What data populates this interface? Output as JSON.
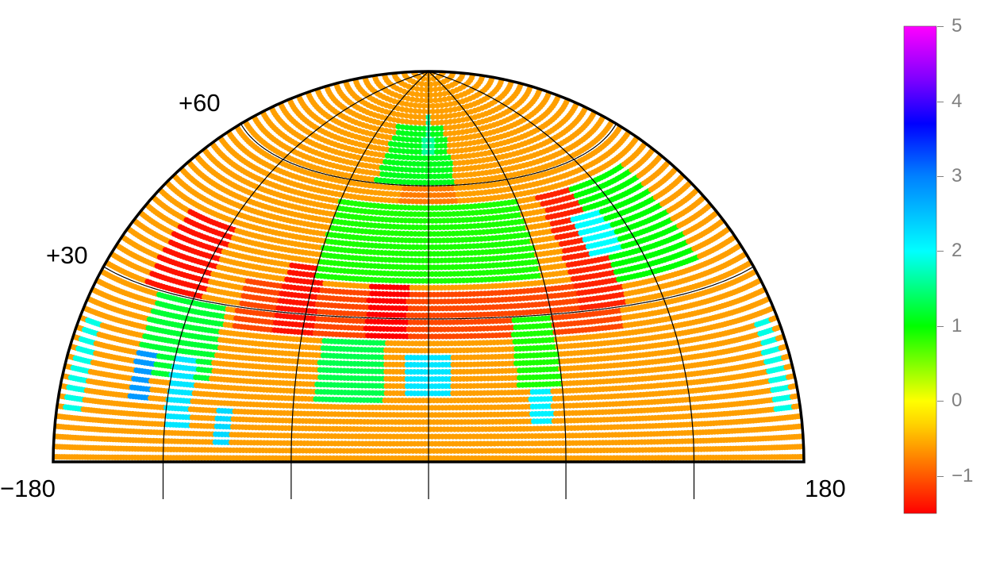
{
  "map": {
    "projection": "Hammer-Aitoff (northern hemisphere)",
    "latitude_labels": [
      "+60",
      "+30"
    ],
    "longitude_labels": [
      "−180",
      "180"
    ],
    "background_value": -0.6,
    "regions": [
      {
        "lon_range": [
          -95,
          95
        ],
        "lat_range": [
          25,
          36
        ],
        "value": -1.1
      },
      {
        "lon_range": [
          -20,
          20
        ],
        "lat_range": [
          55,
          75
        ],
        "value": -0.8
      },
      {
        "lon_range": [
          -75,
          -55
        ],
        "lat_range": [
          25,
          40
        ],
        "value": -1.4
      },
      {
        "lon_range": [
          75,
          100
        ],
        "lat_range": [
          30,
          55
        ],
        "value": -1.3
      },
      {
        "lon_range": [
          -150,
          -115
        ],
        "lat_range": [
          30,
          45
        ],
        "value": -1.4
      },
      {
        "lon_range": [
          -30,
          -10
        ],
        "lat_range": [
          25,
          38
        ],
        "value": -1.5
      },
      {
        "lon_range": [
          -60,
          60
        ],
        "lat_range": [
          38,
          55
        ],
        "value": 0.9
      },
      {
        "lon_range": [
          -40,
          20
        ],
        "lat_range": [
          60,
          75
        ],
        "value": 1.1
      },
      {
        "lon_range": [
          -140,
          -100
        ],
        "lat_range": [
          15,
          30
        ],
        "value": 1.2
      },
      {
        "lon_range": [
          100,
          150
        ],
        "lat_range": [
          35,
          55
        ],
        "value": 1.0
      },
      {
        "lon_range": [
          -120,
          -108
        ],
        "lat_range": [
          6,
          20
        ],
        "value": 2.2
      },
      {
        "lon_range": [
          -175,
          -165
        ],
        "lat_range": [
          8,
          22
        ],
        "value": 1.9
      },
      {
        "lon_range": [
          165,
          175
        ],
        "lat_range": [
          8,
          22
        ],
        "value": 1.9
      },
      {
        "lon_range": [
          -95,
          -88
        ],
        "lat_range": [
          3,
          10
        ],
        "value": 2.3
      },
      {
        "lon_range": [
          45,
          55
        ],
        "lat_range": [
          8,
          18
        ],
        "value": 2.1
      },
      {
        "lon_range": [
          -140,
          -130
        ],
        "lat_range": [
          10,
          20
        ],
        "value": 2.8
      },
      {
        "lon_range": [
          -5,
          5
        ],
        "lat_range": [
          68,
          78
        ],
        "value": 1.6
      },
      {
        "lon_range": [
          90,
          110
        ],
        "lat_range": [
          40,
          50
        ],
        "value": 2.0
      },
      {
        "lon_range": [
          40,
          60
        ],
        "lat_range": [
          15,
          30
        ],
        "value": 0.9
      },
      {
        "lon_range": [
          -50,
          -20
        ],
        "lat_range": [
          12,
          25
        ],
        "value": 1.3
      },
      {
        "lon_range": [
          -10,
          10
        ],
        "lat_range": [
          14,
          22
        ],
        "value": 2.2
      }
    ]
  },
  "colorbar": {
    "ticks": [
      "5",
      "4",
      "3",
      "2",
      "1",
      "0",
      "−1"
    ],
    "tick_values": [
      5,
      4,
      3,
      2,
      1,
      0,
      -1
    ],
    "min": -1.5,
    "max": 5,
    "stops": [
      {
        "value": -1.5,
        "color": "#ff0000"
      },
      {
        "value": -0.9,
        "color": "#ff6a00"
      },
      {
        "value": -0.3,
        "color": "#ffd400"
      },
      {
        "value": 0.0,
        "color": "#ffff00"
      },
      {
        "value": 1.0,
        "color": "#00ff00"
      },
      {
        "value": 2.0,
        "color": "#00ffff"
      },
      {
        "value": 3.0,
        "color": "#0080ff"
      },
      {
        "value": 3.7,
        "color": "#0000ff"
      },
      {
        "value": 4.3,
        "color": "#8000ff"
      },
      {
        "value": 5.0,
        "color": "#ff00ff"
      }
    ]
  }
}
